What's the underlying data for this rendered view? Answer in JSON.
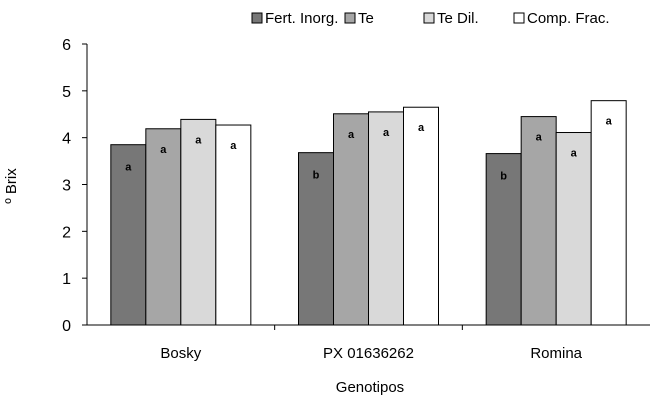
{
  "chart_data": {
    "type": "bar",
    "xlabel": "Genotipos",
    "ylabel": "º Brix",
    "ylim": [
      0,
      6
    ],
    "yticks": [
      0,
      1,
      2,
      3,
      4,
      5,
      6
    ],
    "grid": false,
    "legend_position": "top",
    "categories": [
      "Bosky",
      "PX 01636262",
      "Romina"
    ],
    "series": [
      {
        "name": "Fert. Inorg.",
        "color": "#777777",
        "values": [
          3.85,
          3.68,
          3.66
        ],
        "labels": [
          "a",
          "b",
          "b"
        ]
      },
      {
        "name": "Te",
        "color": "#a6a6a6",
        "values": [
          4.19,
          4.51,
          4.45
        ],
        "labels": [
          "a",
          "a",
          "a"
        ]
      },
      {
        "name": "Te Dil.",
        "color": "#d9d9d9",
        "values": [
          4.39,
          4.55,
          4.11
        ],
        "labels": [
          "a",
          "a",
          "a"
        ]
      },
      {
        "name": "Comp. Frac.",
        "color": "#ffffff",
        "values": [
          4.27,
          4.65,
          4.79
        ],
        "labels": [
          "a",
          "a",
          "a"
        ]
      }
    ]
  }
}
